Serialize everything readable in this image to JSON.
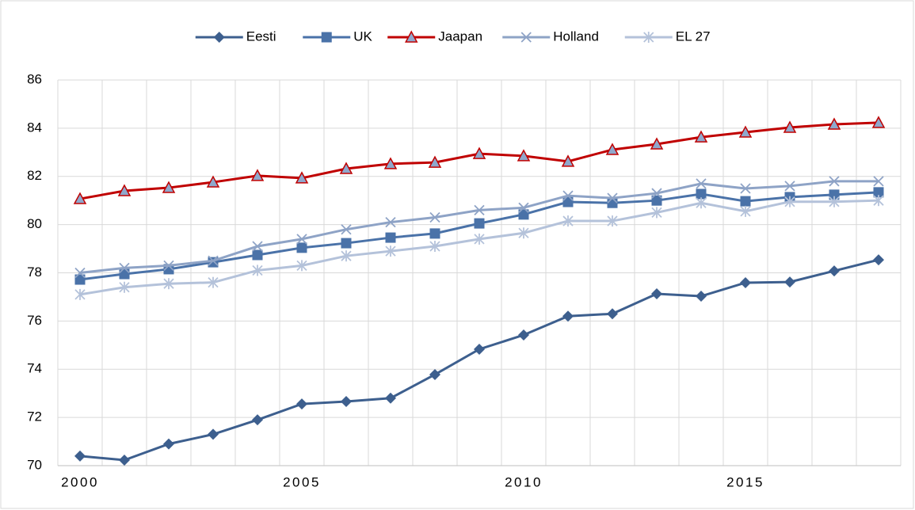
{
  "chart_data": {
    "type": "line",
    "categories": [
      "2000",
      null,
      null,
      null,
      null,
      "2005",
      null,
      null,
      null,
      null,
      "2010",
      null,
      null,
      null,
      null,
      "2015",
      null,
      null,
      null
    ],
    "series": [
      {
        "name": "Eesti",
        "color": "#3d5f8e",
        "marker": "diamond",
        "values": [
          70.4,
          70.23,
          70.9,
          71.3,
          71.9,
          72.56,
          72.66,
          72.8,
          73.78,
          74.83,
          75.42,
          76.2,
          76.3,
          77.13,
          77.03,
          77.59,
          77.62,
          78.08,
          78.54
        ]
      },
      {
        "name": "UK",
        "color": "#4a72a8",
        "marker": "square",
        "values": [
          77.72,
          77.95,
          78.15,
          78.44,
          78.74,
          79.04,
          79.23,
          79.46,
          79.63,
          80.05,
          80.42,
          80.94,
          80.9,
          81.0,
          81.27,
          80.97,
          81.14,
          81.24,
          81.34
        ]
      },
      {
        "name": "Jaapan",
        "color": "#c00000",
        "marker": "triangle",
        "marker_fill": "#8fa8cc",
        "values": [
          81.07,
          81.4,
          81.53,
          81.76,
          82.03,
          81.93,
          82.32,
          82.52,
          82.58,
          82.94,
          82.85,
          82.62,
          83.11,
          83.34,
          83.63,
          83.83,
          84.03,
          84.16,
          84.23
        ]
      },
      {
        "name": "Holland",
        "color": "#8ea3c6",
        "marker": "x",
        "values": [
          78.0,
          78.2,
          78.3,
          78.5,
          79.1,
          79.4,
          79.8,
          80.1,
          80.3,
          80.6,
          80.7,
          81.2,
          81.1,
          81.3,
          81.7,
          81.5,
          81.6,
          81.8,
          81.8
        ]
      },
      {
        "name": "EL 27",
        "color": "#b4c2da",
        "marker": "star",
        "values": [
          77.1,
          77.4,
          77.55,
          77.6,
          78.1,
          78.3,
          78.7,
          78.9,
          79.1,
          79.4,
          79.65,
          80.15,
          80.15,
          80.5,
          80.9,
          80.55,
          80.95,
          80.95,
          81.0
        ]
      }
    ],
    "ylim": [
      70,
      86
    ],
    "yticks": [
      70,
      72,
      74,
      76,
      78,
      80,
      82,
      84,
      86
    ],
    "grid": true,
    "legend": "top"
  }
}
